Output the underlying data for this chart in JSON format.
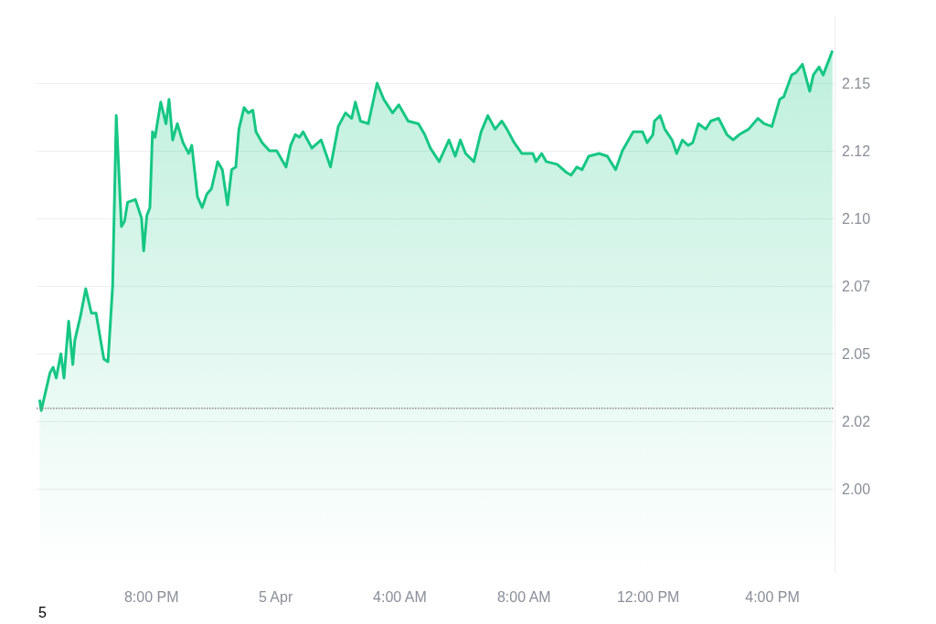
{
  "chart_data": {
    "type": "area",
    "x": [
      "--04-04T16:24",
      "--04-04T16:27",
      "--04-04T16:44",
      "--04-04T16:50",
      "--04-04T16:56",
      "--04-04T17:05",
      "--04-04T17:11",
      "--04-04T17:20",
      "--04-04T17:28",
      "--04-04T17:32",
      "--04-04T17:43",
      "--04-04T17:53",
      "--04-04T18:04",
      "--04-04T18:13",
      "--04-04T18:28",
      "--04-04T18:36",
      "--04-04T18:45",
      "--04-04T18:52",
      "--04-04T19:02",
      "--04-04T19:08",
      "--04-04T19:14",
      "--04-04T19:29",
      "--04-04T19:41",
      "--04-04T19:45",
      "--04-04T19:51",
      "--04-04T19:57",
      "--04-04T20:02",
      "--04-04T20:07",
      "--04-04T20:18",
      "--04-04T20:28",
      "--04-04T20:34",
      "--04-04T20:41",
      "--04-04T20:50",
      "--04-04T21:01",
      "--04-04T21:12",
      "--04-04T21:18",
      "--04-04T21:29",
      "--04-04T21:38",
      "--04-04T21:47",
      "--04-04T21:56",
      "--04-04T22:08",
      "--04-04T22:17",
      "--04-04T22:27",
      "--04-04T22:35",
      "--04-04T22:43",
      "--04-04T22:49",
      "--04-04T22:59",
      "--04-04T23:07",
      "--04-04T23:16",
      "--04-04T23:22",
      "--04-04T23:34",
      "--04-04T23:48",
      "--04-05T00:02",
      "--04-05T00:20",
      "--04-05T00:29",
      "--04-05T00:38",
      "--04-05T00:46",
      "--04-05T00:53",
      "--04-05T01:10",
      "--04-05T01:28",
      "--04-05T01:46",
      "--04-05T02:01",
      "--04-05T02:15",
      "--04-05T02:27",
      "--04-05T02:34",
      "--04-05T02:44",
      "--04-05T02:59",
      "--04-05T03:16",
      "--04-05T03:29",
      "--04-05T03:46",
      "--04-05T03:58",
      "--04-05T04:16",
      "--04-05T04:36",
      "--04-05T04:48",
      "--04-05T04:59",
      "--04-05T05:16",
      "--04-05T05:35",
      "--04-05T05:47",
      "--04-05T05:57",
      "--04-05T06:07",
      "--04-05T06:23",
      "--04-05T06:37",
      "--04-05T06:50",
      "--04-05T07:04",
      "--04-05T07:17",
      "--04-05T07:27",
      "--04-05T07:41",
      "--04-05T07:56",
      "--04-05T08:17",
      "--04-05T08:23",
      "--04-05T08:34",
      "--04-05T08:43",
      "--04-05T09:04",
      "--04-05T09:22",
      "--04-05T09:31",
      "--04-05T09:42",
      "--04-05T09:52",
      "--04-05T10:05",
      "--04-05T10:25",
      "--04-05T10:41",
      "--04-05T10:57",
      "--04-05T11:10",
      "--04-05T11:31",
      "--04-05T11:49",
      "--04-05T11:58",
      "--04-05T12:09",
      "--04-05T12:12",
      "--04-05T12:23",
      "--04-05T12:32",
      "--04-05T12:46",
      "--04-05T12:55",
      "--04-05T13:06",
      "--04-05T13:17",
      "--04-05T13:26",
      "--04-05T13:37",
      "--04-05T13:51",
      "--04-05T14:01",
      "--04-05T14:16",
      "--04-05T14:32",
      "--04-05T14:44",
      "--04-05T14:56",
      "--04-05T15:14",
      "--04-05T15:32",
      "--04-05T15:44",
      "--04-05T15:59",
      "--04-05T16:14",
      "--04-05T16:22",
      "--04-05T16:37",
      "--04-05T16:46",
      "--04-05T16:58",
      "--04-05T17:12",
      "--04-05T17:19",
      "--04-05T17:30",
      "--04-05T17:38",
      "--04-05T17:56"
    ],
    "series": [
      {
        "color": "#16c784",
        "values": [
          2.033,
          2.029,
          2.043,
          2.045,
          2.041,
          2.05,
          2.041,
          2.062,
          2.046,
          2.055,
          2.064,
          2.074,
          2.065,
          2.065,
          2.048,
          2.047,
          2.075,
          2.138,
          2.097,
          2.099,
          2.106,
          2.107,
          2.1,
          2.088,
          2.101,
          2.104,
          2.132,
          2.13,
          2.143,
          2.135,
          2.144,
          2.129,
          2.135,
          2.128,
          2.124,
          2.127,
          2.108,
          2.104,
          2.109,
          2.111,
          2.121,
          2.118,
          2.105,
          2.118,
          2.119,
          2.133,
          2.141,
          2.139,
          2.14,
          2.132,
          2.128,
          2.125,
          2.125,
          2.119,
          2.127,
          2.131,
          2.13,
          2.132,
          2.126,
          2.129,
          2.119,
          2.134,
          2.139,
          2.137,
          2.143,
          2.136,
          2.135,
          2.15,
          2.144,
          2.139,
          2.142,
          2.136,
          2.135,
          2.131,
          2.126,
          2.121,
          2.129,
          2.123,
          2.129,
          2.124,
          2.121,
          2.132,
          2.138,
          2.133,
          2.136,
          2.133,
          2.128,
          2.124,
          2.124,
          2.121,
          2.124,
          2.121,
          2.12,
          2.117,
          2.116,
          2.119,
          2.118,
          2.123,
          2.124,
          2.123,
          2.118,
          2.125,
          2.132,
          2.132,
          2.128,
          2.131,
          2.136,
          2.138,
          2.133,
          2.129,
          2.124,
          2.129,
          2.127,
          2.128,
          2.135,
          2.133,
          2.136,
          2.137,
          2.131,
          2.129,
          2.131,
          2.133,
          2.137,
          2.135,
          2.134,
          2.144,
          2.145,
          2.153,
          2.154,
          2.157,
          2.147,
          2.153,
          2.156,
          2.153,
          2.162
        ]
      }
    ],
    "xlim": [
      "--04-04T16:18",
      "--04-05T18:00"
    ],
    "xticks": [
      {
        "value": "--04-04T20:00",
        "label": "8:00 PM"
      },
      {
        "value": "--04-05T00:00",
        "label": "5 Apr"
      },
      {
        "value": "--04-05T04:00",
        "label": "4:00 AM"
      },
      {
        "value": "--04-05T08:00",
        "label": "8:00 AM"
      },
      {
        "value": "--04-05T12:00",
        "label": "12:00 PM"
      },
      {
        "value": "--04-05T16:00",
        "label": "4:00 PM"
      }
    ],
    "ylim": [
      1.969,
      2.175
    ],
    "yticks": [
      {
        "value": 2.0,
        "label": "2.00"
      },
      {
        "value": 2.025,
        "label": "2.02"
      },
      {
        "value": 2.05,
        "label": "2.05"
      },
      {
        "value": 2.075,
        "label": "2.07"
      },
      {
        "value": 2.1,
        "label": "2.10"
      },
      {
        "value": 2.125,
        "label": "2.12"
      },
      {
        "value": 2.15,
        "label": "2.15"
      }
    ],
    "grid": "y",
    "marker": "none",
    "ref_lines": [
      {
        "axis": "y",
        "value": 2.03,
        "color": "#888888",
        "line_style": "dotted"
      }
    ],
    "annotations": [
      "5"
    ]
  }
}
